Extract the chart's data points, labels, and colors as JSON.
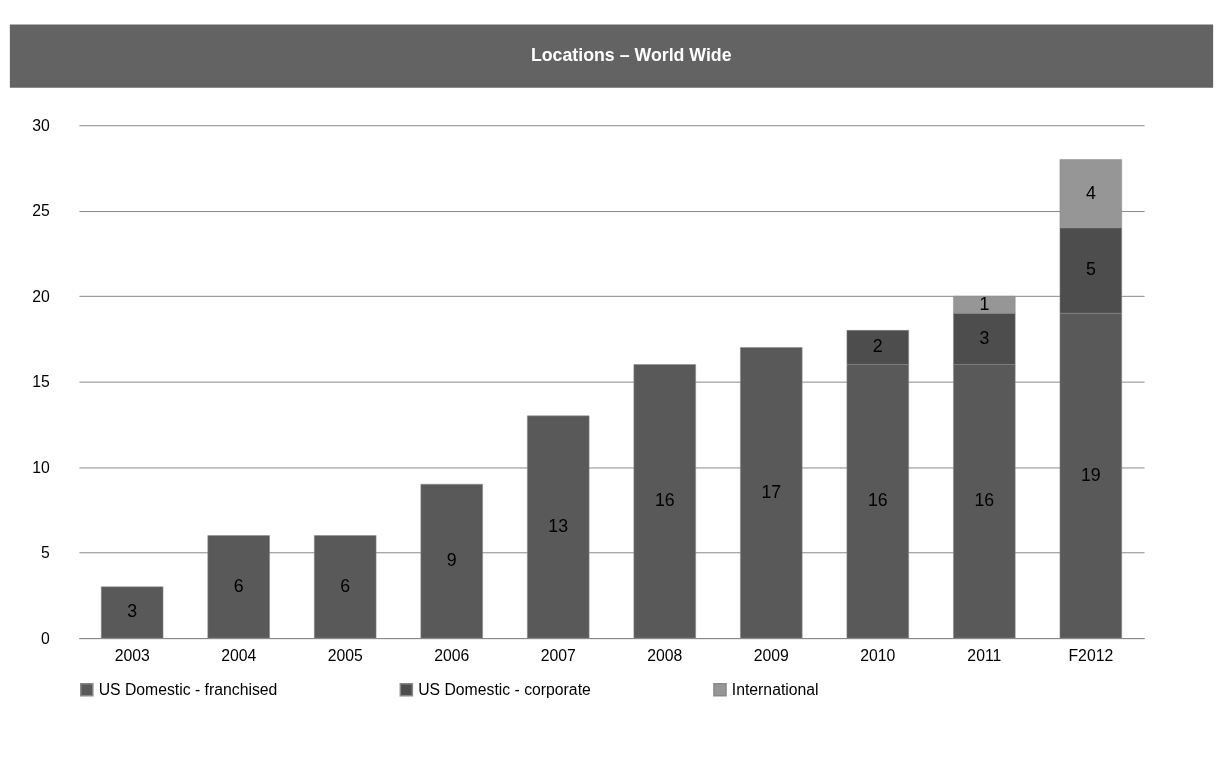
{
  "chart_data": {
    "type": "bar",
    "title": "Locations – World Wide",
    "stacked": true,
    "data_labels": true,
    "categories": [
      "2003",
      "2004",
      "2005",
      "2006",
      "2007",
      "2008",
      "2009",
      "2010",
      "2011",
      "F2012"
    ],
    "series": [
      {
        "name": "US Domestic - franchised",
        "color": "#595959",
        "values": [
          3,
          6,
          6,
          9,
          13,
          16,
          17,
          16,
          16,
          19
        ]
      },
      {
        "name": "US Domestic - corporate",
        "color": "#4d4d4d",
        "values": [
          null,
          null,
          null,
          null,
          null,
          null,
          null,
          2,
          3,
          5
        ]
      },
      {
        "name": "International",
        "color": "#969696",
        "values": [
          null,
          null,
          null,
          null,
          null,
          null,
          null,
          null,
          1,
          4
        ]
      }
    ],
    "ylim": [
      0,
      30
    ],
    "yticks": [
      0,
      5,
      10,
      15,
      20,
      25,
      30
    ],
    "grid": "y",
    "legend": "bottom"
  }
}
